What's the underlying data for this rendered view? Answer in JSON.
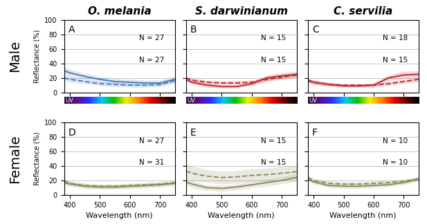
{
  "row_labels": [
    "Male",
    "Female"
  ],
  "spectrum_label": "UV",
  "chart_data": [
    {
      "type": "line",
      "title": "O. melania",
      "panel_label": "A",
      "ylabel": "Reflectance (%)",
      "annotations": [
        "N = 27",
        "N = 27"
      ],
      "x": [
        380,
        400,
        450,
        500,
        550,
        600,
        650,
        700,
        750
      ],
      "series": [
        {
          "color": "#4a7ebb",
          "line_style": "solid",
          "values": [
            30,
            27,
            22,
            18,
            15,
            14,
            13,
            13,
            18
          ],
          "error": [
            5,
            5,
            4,
            4,
            4,
            4,
            4,
            4,
            4
          ]
        },
        {
          "color": "#4a7ebb",
          "line_style": "dashed",
          "values": [
            20,
            18,
            15,
            12,
            11,
            10,
            10,
            11,
            16
          ],
          "error": [
            4,
            4,
            3,
            3,
            3,
            3,
            3,
            3,
            3
          ]
        }
      ],
      "xlim": [
        380,
        750
      ],
      "xticks": [
        400,
        500,
        600,
        700
      ],
      "ylim": [
        0,
        100
      ],
      "yticks": [
        0,
        20,
        40,
        60,
        80,
        100
      ],
      "grid": "y",
      "tick_labels": "y"
    },
    {
      "type": "line",
      "title": "S. darwinianum",
      "panel_label": "B",
      "annotations": [
        "N = 15",
        "N = 15"
      ],
      "x": [
        380,
        400,
        450,
        500,
        550,
        600,
        650,
        700,
        750
      ],
      "series": [
        {
          "color": "#c0282d",
          "line_style": "solid",
          "values": [
            18,
            14,
            10,
            8,
            8,
            12,
            20,
            23,
            25
          ],
          "error": [
            3,
            3,
            3,
            2,
            2,
            3,
            4,
            4,
            4
          ]
        },
        {
          "color": "#c0282d",
          "line_style": "dashed",
          "values": [
            20,
            17,
            14,
            13,
            13,
            14,
            18,
            21,
            24
          ],
          "error": [
            3,
            3,
            3,
            3,
            3,
            3,
            3,
            3,
            3
          ]
        }
      ],
      "xlim": [
        380,
        750
      ],
      "xticks": [
        400,
        500,
        600,
        700
      ],
      "ylim": [
        0,
        100
      ],
      "yticks": [
        0,
        20,
        40,
        60,
        80,
        100
      ],
      "grid": "y",
      "tick_labels": false
    },
    {
      "type": "line",
      "title": "C. servilia",
      "panel_label": "C",
      "annotations": [
        "N = 18",
        "N = 15"
      ],
      "x": [
        380,
        400,
        450,
        500,
        550,
        600,
        650,
        700,
        750
      ],
      "series": [
        {
          "color": "#c0282d",
          "line_style": "solid",
          "values": [
            17,
            14,
            11,
            9,
            9,
            10,
            20,
            24,
            25
          ],
          "error": [
            3,
            3,
            3,
            2,
            2,
            3,
            4,
            5,
            5
          ]
        },
        {
          "color": "#c0282d",
          "line_style": "dashed",
          "values": [
            16,
            14,
            11,
            10,
            10,
            10,
            12,
            15,
            18
          ],
          "error": [
            3,
            3,
            2,
            2,
            2,
            2,
            3,
            3,
            3
          ]
        }
      ],
      "xlim": [
        380,
        750
      ],
      "xticks": [
        400,
        500,
        600,
        700
      ],
      "ylim": [
        0,
        100
      ],
      "yticks": [
        0,
        20,
        40,
        60,
        80,
        100
      ],
      "grid": "y",
      "tick_labels": false
    },
    {
      "type": "line",
      "panel_label": "D",
      "ylabel": "Reflectance (%)",
      "xlabel": "Wavelength (nm)",
      "annotations": [
        "N = 27",
        "N = 31"
      ],
      "x": [
        380,
        400,
        450,
        500,
        550,
        600,
        650,
        700,
        750
      ],
      "series": [
        {
          "color": "#8c8a5c",
          "line_style": "solid",
          "values": [
            17,
            15,
            12,
            11,
            11,
            12,
            13,
            14,
            16
          ],
          "error": [
            3,
            3,
            3,
            3,
            3,
            3,
            3,
            3,
            3
          ]
        },
        {
          "color": "#8c8a5c",
          "line_style": "dashed",
          "values": [
            19,
            16,
            13,
            12,
            12,
            13,
            14,
            15,
            17
          ],
          "error": [
            3,
            3,
            3,
            3,
            3,
            3,
            3,
            3,
            3
          ]
        }
      ],
      "xlim": [
        380,
        750
      ],
      "xticks": [
        400,
        500,
        600,
        700
      ],
      "ylim": [
        0,
        100
      ],
      "yticks": [
        0,
        20,
        40,
        60,
        80,
        100
      ],
      "grid": "y",
      "tick_labels": true
    },
    {
      "type": "line",
      "panel_label": "E",
      "xlabel": "Wavelength (nm)",
      "annotations": [
        "N = 15",
        "N = 15"
      ],
      "x": [
        380,
        400,
        450,
        500,
        550,
        600,
        650,
        700,
        750
      ],
      "series": [
        {
          "color": "#8c8a5c",
          "line_style": "solid",
          "values": [
            18,
            15,
            10,
            9,
            11,
            14,
            17,
            20,
            24
          ],
          "error": [
            5,
            5,
            4,
            4,
            4,
            4,
            5,
            5,
            5
          ]
        },
        {
          "color": "#8c8a5c",
          "line_style": "dashed",
          "values": [
            33,
            30,
            26,
            24,
            25,
            27,
            28,
            30,
            32
          ],
          "error": [
            10,
            10,
            9,
            9,
            9,
            9,
            9,
            9,
            9
          ]
        }
      ],
      "xlim": [
        380,
        750
      ],
      "xticks": [
        400,
        500,
        600,
        700
      ],
      "ylim": [
        0,
        100
      ],
      "yticks": [
        0,
        20,
        40,
        60,
        80,
        100
      ],
      "grid": "y",
      "tick_labels": "x"
    },
    {
      "type": "line",
      "panel_label": "F",
      "xlabel": "Wavelength (nm)",
      "annotations": [
        "N = 10",
        "N = 10"
      ],
      "x": [
        380,
        400,
        450,
        500,
        550,
        600,
        650,
        700,
        750
      ],
      "series": [
        {
          "color": "#8c8a5c",
          "line_style": "solid",
          "values": [
            22,
            18,
            13,
            12,
            12,
            13,
            14,
            17,
            22
          ],
          "error": [
            3,
            3,
            3,
            3,
            3,
            3,
            3,
            3,
            3
          ]
        },
        {
          "color": "#8c8a5c",
          "line_style": "dashed",
          "values": [
            24,
            20,
            16,
            15,
            15,
            16,
            17,
            19,
            22
          ],
          "error": [
            3,
            3,
            3,
            3,
            3,
            3,
            3,
            3,
            3
          ]
        }
      ],
      "xlim": [
        380,
        750
      ],
      "xticks": [
        400,
        500,
        600,
        700
      ],
      "ylim": [
        0,
        100
      ],
      "yticks": [
        0,
        20,
        40,
        60,
        80,
        100
      ],
      "grid": "y",
      "tick_labels": "x"
    }
  ]
}
